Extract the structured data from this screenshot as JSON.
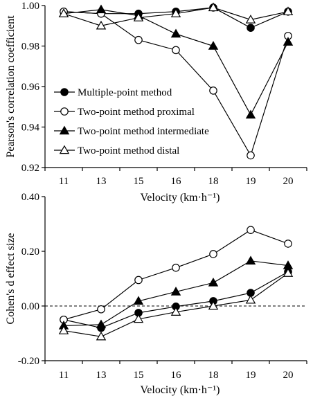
{
  "colors": {
    "ink": "#000000",
    "background": "#ffffff",
    "open_marker_fill": "#ffffff"
  },
  "chart_data": [
    {
      "type": "line",
      "title": "",
      "xlabel": "Velocity (km·h⁻¹)",
      "ylabel": "Pearson's correlation coefficient",
      "categories": [
        "11",
        "13",
        "15",
        "16",
        "18",
        "19",
        "20"
      ],
      "ylim": [
        0.92,
        1.0
      ],
      "yticks": [
        0.92,
        0.94,
        0.96,
        0.98,
        1.0
      ],
      "ytick_labels": [
        "0.92",
        "0.94",
        "0.96",
        "0.98",
        "1.00"
      ],
      "grid": false,
      "legend_position": "lower-left",
      "series": [
        {
          "name": "Multiple-point method",
          "marker": "filled-circle",
          "values": [
            0.997,
            0.996,
            0.996,
            0.997,
            0.999,
            0.989,
            0.997
          ]
        },
        {
          "name": "Two-point method proximal",
          "marker": "open-circle",
          "values": [
            0.997,
            0.996,
            0.983,
            0.978,
            0.958,
            0.926,
            0.985
          ]
        },
        {
          "name": "Two-point method intermediate",
          "marker": "filled-triangle",
          "values": [
            0.996,
            0.998,
            0.995,
            0.986,
            0.98,
            0.946,
            0.982
          ]
        },
        {
          "name": "Two-point method distal",
          "marker": "open-triangle",
          "values": [
            0.996,
            0.99,
            0.994,
            0.996,
            0.999,
            0.993,
            0.997
          ]
        }
      ]
    },
    {
      "type": "line",
      "title": "",
      "xlabel": "Velocity (km·h⁻¹)",
      "ylabel": "Cohen's d effect size",
      "categories": [
        "11",
        "13",
        "15",
        "16",
        "18",
        "19",
        "20"
      ],
      "ylim": [
        -0.2,
        0.4
      ],
      "yticks": [
        -0.2,
        0.0,
        0.2,
        0.4
      ],
      "ytick_labels": [
        "-0.20",
        "0.00",
        "0.20",
        "0.40"
      ],
      "grid": false,
      "reference_line": 0.0,
      "series": [
        {
          "name": "Multiple-point method",
          "marker": "filled-circle",
          "values": [
            -0.05,
            -0.08,
            -0.025,
            -0.002,
            0.018,
            0.048,
            0.125
          ]
        },
        {
          "name": "Two-point method proximal",
          "marker": "open-circle",
          "values": [
            -0.05,
            -0.012,
            0.095,
            0.14,
            0.19,
            0.278,
            0.228
          ]
        },
        {
          "name": "Two-point method intermediate",
          "marker": "filled-triangle",
          "values": [
            -0.072,
            -0.068,
            0.018,
            0.052,
            0.085,
            0.165,
            0.148
          ]
        },
        {
          "name": "Two-point method distal",
          "marker": "open-triangle",
          "values": [
            -0.09,
            -0.112,
            -0.048,
            -0.022,
            0.0,
            0.022,
            0.12
          ]
        }
      ]
    }
  ]
}
